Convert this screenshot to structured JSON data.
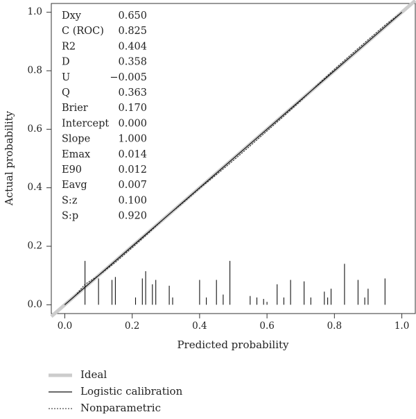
{
  "chart_data": {
    "type": "line",
    "xlabel": "Predicted probability",
    "ylabel": "Actual probability",
    "xlim": [
      -0.04,
      1.04
    ],
    "ylim": [
      -0.03,
      1.03
    ],
    "x_ticks": [
      0.0,
      0.2,
      0.4,
      0.6,
      0.8,
      1.0
    ],
    "y_ticks": [
      0.0,
      0.2,
      0.4,
      0.6,
      0.8,
      1.0
    ],
    "x_tick_labels": [
      "0.0",
      "0.2",
      "0.4",
      "0.6",
      "0.8",
      "1.0"
    ],
    "y_tick_labels": [
      "0.0",
      "0.2",
      "0.4",
      "0.6",
      "0.8",
      "1.0"
    ],
    "grid": false,
    "legend_position": "bottom",
    "series": [
      {
        "name": "Ideal",
        "style": "thick-gray",
        "color": "#cccccc",
        "x": [
          -0.04,
          1.04
        ],
        "y": [
          -0.04,
          1.04
        ]
      },
      {
        "name": "Logistic calibration",
        "style": "solid",
        "color": "#111111",
        "x": [
          0.0,
          0.2,
          0.4,
          0.6,
          0.8,
          1.0
        ],
        "y": [
          0.0,
          0.2,
          0.4,
          0.6,
          0.8,
          1.0
        ]
      },
      {
        "name": "Nonparametric",
        "style": "dotted",
        "color": "#222222",
        "x": [
          0.0,
          0.03,
          0.06,
          0.1,
          0.15,
          0.2,
          0.25,
          0.3,
          0.35,
          0.4,
          0.45,
          0.5,
          0.55,
          0.6,
          0.65,
          0.7,
          0.75,
          0.8,
          0.85,
          0.9,
          0.95,
          1.0
        ],
        "y": [
          0.0,
          0.03,
          0.07,
          0.1,
          0.145,
          0.195,
          0.247,
          0.3,
          0.348,
          0.398,
          0.445,
          0.493,
          0.543,
          0.594,
          0.645,
          0.697,
          0.752,
          0.805,
          0.856,
          0.906,
          0.956,
          1.0
        ]
      }
    ],
    "histogram_spikes": {
      "x": [
        0.06,
        0.1,
        0.14,
        0.15,
        0.21,
        0.23,
        0.24,
        0.26,
        0.27,
        0.31,
        0.32,
        0.4,
        0.42,
        0.45,
        0.47,
        0.49,
        0.55,
        0.57,
        0.59,
        0.6,
        0.63,
        0.65,
        0.67,
        0.71,
        0.73,
        0.77,
        0.78,
        0.79,
        0.83,
        0.87,
        0.89,
        0.9,
        0.95
      ],
      "heights": [
        0.15,
        0.09,
        0.085,
        0.095,
        0.025,
        0.09,
        0.115,
        0.07,
        0.085,
        0.065,
        0.025,
        0.085,
        0.025,
        0.085,
        0.035,
        0.15,
        0.03,
        0.025,
        0.02,
        0.01,
        0.07,
        0.025,
        0.085,
        0.08,
        0.025,
        0.045,
        0.025,
        0.055,
        0.14,
        0.085,
        0.025,
        0.055,
        0.09
      ]
    },
    "stats": [
      {
        "label": "Dxy",
        "value": "0.650"
      },
      {
        "label": "C (ROC)",
        "value": "0.825"
      },
      {
        "label": "R2",
        "value": "0.404"
      },
      {
        "label": "D",
        "value": "0.358"
      },
      {
        "label": "U",
        "value": "−0.005"
      },
      {
        "label": "Q",
        "value": "0.363"
      },
      {
        "label": "Brier",
        "value": "0.170"
      },
      {
        "label": "Intercept",
        "value": "0.000"
      },
      {
        "label": "Slope",
        "value": "1.000"
      },
      {
        "label": "Emax",
        "value": "0.014"
      },
      {
        "label": "E90",
        "value": "0.012"
      },
      {
        "label": "Eavg",
        "value": "0.007"
      },
      {
        "label": "S:z",
        "value": "0.100"
      },
      {
        "label": "S:p",
        "value": "0.920"
      }
    ]
  }
}
